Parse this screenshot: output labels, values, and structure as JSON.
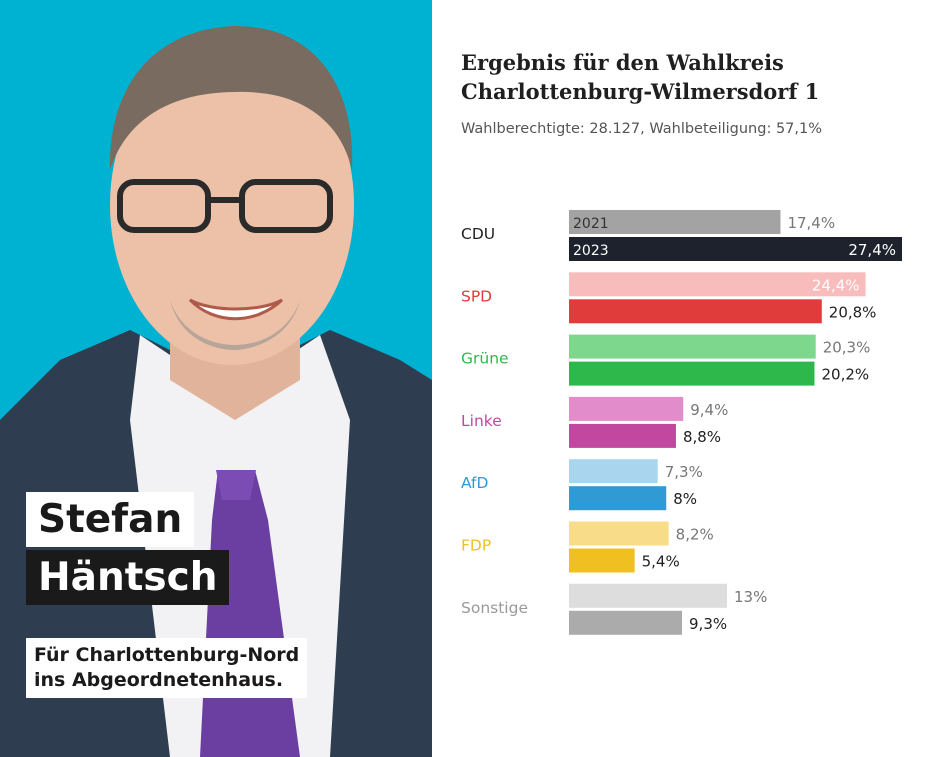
{
  "poster": {
    "first_name": "Stefan",
    "last_name": "Häntsch",
    "slogan_line1": "Für Charlottenburg-Nord",
    "slogan_line2": "ins Abgeordnetenhaus.",
    "background_color": "#00b2d2"
  },
  "chart_data": {
    "type": "bar",
    "orientation": "horizontal",
    "title_line1": "Ergebnis für den Wahlkreis",
    "title_line2": "Charlottenburg-Wilmersdorf 1",
    "subtitle": "Wahlberechtigte: 28.127, Wahlbeteiligung: 57,1%",
    "series": [
      {
        "name": "2021",
        "values": [
          17.4,
          24.4,
          20.3,
          9.4,
          7.3,
          8.2,
          13
        ]
      },
      {
        "name": "2023",
        "values": [
          27.4,
          20.8,
          20.2,
          8.8,
          8,
          5.4,
          9.3
        ]
      }
    ],
    "categories": [
      "CDU",
      "SPD",
      "Grüne",
      "Linke",
      "AfD",
      "FDP",
      "Sonstige"
    ],
    "value_labels_2021": [
      "17,4%",
      "24,4%",
      "20,3%",
      "9,4%",
      "7,3%",
      "8,2%",
      "13%"
    ],
    "value_labels_2023": [
      "27,4%",
      "20,8%",
      "20,2%",
      "8,8%",
      "8%",
      "5,4%",
      "9,3%"
    ],
    "label_colors": [
      "#1f1f1f",
      "#e03c3c",
      "#2eb84b",
      "#c2489f",
      "#2f9ad4",
      "#f0c020",
      "#9a9a9a"
    ],
    "colors_2021": [
      "#a3a3a3",
      "#f8bcbc",
      "#7dd88d",
      "#e38ccb",
      "#a9d6ee",
      "#f8dc8a",
      "#dddddd"
    ],
    "colors_2023": [
      "#1d222c",
      "#e03c3c",
      "#2eb84b",
      "#c2489f",
      "#2f9ad4",
      "#f0c020",
      "#ababab"
    ],
    "xlim": [
      0,
      27.4
    ]
  }
}
